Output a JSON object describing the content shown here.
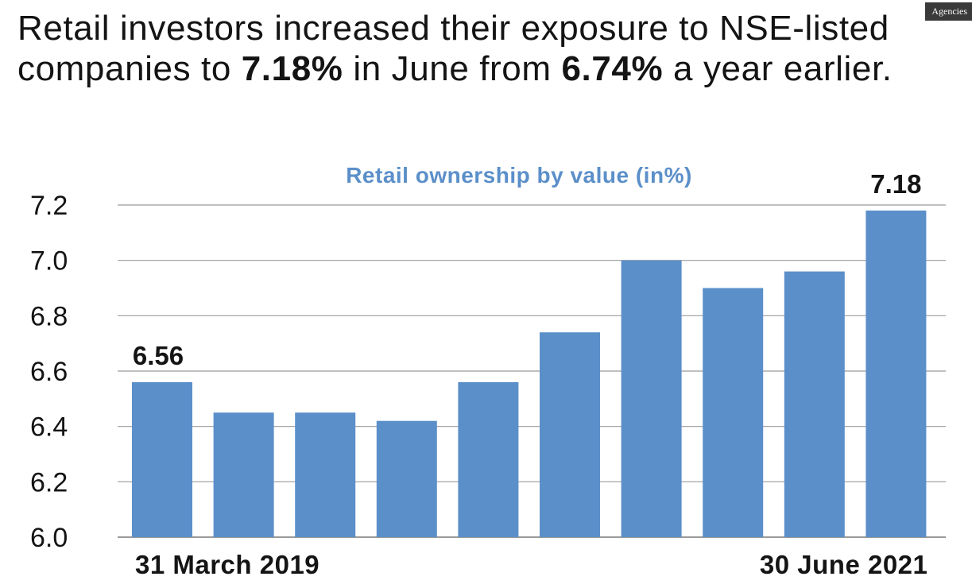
{
  "headline": {
    "part1": "Retail investors increased their exposure to NSE-listed companies to ",
    "bold1": "7.18%",
    "part2": " in June from ",
    "bold2": "6.74%",
    "part3": " a year earlier."
  },
  "badge": "Agencies",
  "chart_data": {
    "type": "bar",
    "title": "Retail ownership by value (in%)",
    "xlabel": "",
    "ylabel": "",
    "categories": [
      "31 March 2019",
      "",
      "",
      "",
      "",
      "",
      "",
      "",
      "",
      "30 June 2021"
    ],
    "values": [
      6.56,
      6.45,
      6.45,
      6.42,
      6.56,
      6.74,
      7.0,
      6.9,
      6.96,
      7.18
    ],
    "value_labels": [
      "6.56",
      "",
      "",
      "",
      "",
      "",
      "",
      "",
      "",
      "7.18"
    ],
    "ylim": [
      6.0,
      7.2
    ],
    "yticks": [
      "6.0",
      "6.2",
      "6.4",
      "6.6",
      "6.8",
      "7.0",
      "7.2"
    ],
    "grid": true,
    "bar_color": "#5b8fc9",
    "title_color": "#5b8fc9",
    "grid_color": "#9a9a9a"
  }
}
